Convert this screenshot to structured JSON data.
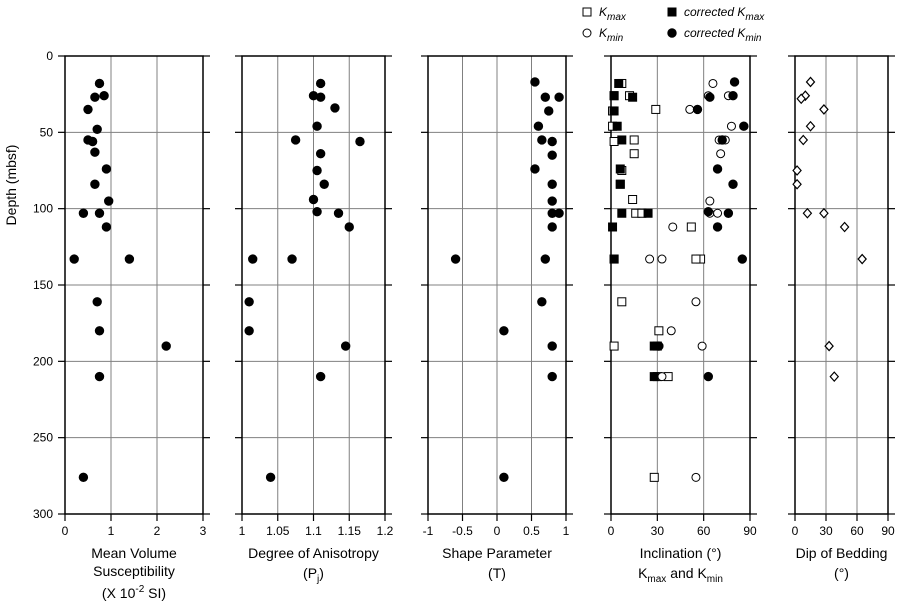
{
  "figure": {
    "depth_axis": {
      "label": "Depth (mbsf)",
      "range": [
        0,
        300
      ],
      "ticks": [
        0,
        50,
        100,
        150,
        200,
        250,
        300
      ],
      "inverted": true
    }
  },
  "legend": {
    "items": [
      {
        "marker": "open-square",
        "text": "K",
        "sub": "max"
      },
      {
        "marker": "filled-square",
        "text": "corrected K",
        "sub": "max"
      },
      {
        "marker": "open-circle",
        "text": "K",
        "sub": "min"
      },
      {
        "marker": "filled-circle",
        "text": "corrected K",
        "sub": "min"
      }
    ]
  },
  "chart_data": [
    {
      "type": "scatter",
      "xlabel_lines": [
        "Mean Volume",
        "Susceptibility",
        "(X 10",
        "-2",
        " SI)"
      ],
      "xlim": [
        0,
        3
      ],
      "xticks": [
        0,
        1,
        2,
        3
      ],
      "xtick_labels": [
        "0",
        "1",
        "2",
        "3"
      ],
      "ylim": [
        0,
        300
      ],
      "grid": true,
      "series": [
        {
          "marker": "filled-circle",
          "points": [
            [
              0.75,
              18
            ],
            [
              0.85,
              26
            ],
            [
              0.65,
              27
            ],
            [
              0.5,
              35
            ],
            [
              0.7,
              48
            ],
            [
              0.5,
              55
            ],
            [
              0.6,
              56
            ],
            [
              0.65,
              63
            ],
            [
              0.9,
              74
            ],
            [
              0.65,
              84
            ],
            [
              0.95,
              95
            ],
            [
              0.4,
              103
            ],
            [
              0.75,
              103
            ],
            [
              0.9,
              112
            ],
            [
              0.2,
              133
            ],
            [
              1.4,
              133
            ],
            [
              0.7,
              161
            ],
            [
              0.75,
              180
            ],
            [
              2.2,
              190
            ],
            [
              0.75,
              210
            ],
            [
              0.4,
              276
            ]
          ]
        }
      ]
    },
    {
      "type": "scatter",
      "xlabel_lines": [
        "Degree of Anisotropy",
        "(P",
        "j",
        ")"
      ],
      "xlim": [
        1,
        1.2
      ],
      "xticks": [
        1,
        1.05,
        1.1,
        1.15,
        1.2
      ],
      "xtick_labels": [
        "1",
        "1.05",
        "1.1",
        "1.15",
        "1.2"
      ],
      "ylim": [
        0,
        300
      ],
      "grid": true,
      "series": [
        {
          "marker": "filled-circle",
          "points": [
            [
              1.11,
              18
            ],
            [
              1.1,
              26
            ],
            [
              1.11,
              27
            ],
            [
              1.13,
              34
            ],
            [
              1.105,
              46
            ],
            [
              1.075,
              55
            ],
            [
              1.165,
              56
            ],
            [
              1.11,
              64
            ],
            [
              1.105,
              75
            ],
            [
              1.115,
              84
            ],
            [
              1.1,
              94
            ],
            [
              1.105,
              102
            ],
            [
              1.135,
              103
            ],
            [
              1.15,
              112
            ],
            [
              1.015,
              133
            ],
            [
              1.07,
              133
            ],
            [
              1.01,
              161
            ],
            [
              1.01,
              180
            ],
            [
              1.145,
              190
            ],
            [
              1.11,
              210
            ],
            [
              1.04,
              276
            ]
          ]
        }
      ]
    },
    {
      "type": "scatter",
      "xlabel_lines": [
        "Shape Parameter",
        "(T)"
      ],
      "xlim": [
        -1,
        1
      ],
      "xticks": [
        -1,
        -0.5,
        0,
        0.5,
        1
      ],
      "xtick_labels": [
        "-1",
        "-0.5",
        "0",
        "0.5",
        "1"
      ],
      "ylim": [
        0,
        300
      ],
      "grid": true,
      "series": [
        {
          "marker": "filled-circle",
          "points": [
            [
              0.55,
              17
            ],
            [
              0.7,
              27
            ],
            [
              0.9,
              27
            ],
            [
              0.75,
              36
            ],
            [
              0.6,
              46
            ],
            [
              0.65,
              55
            ],
            [
              0.8,
              56
            ],
            [
              0.55,
              74
            ],
            [
              0.8,
              65
            ],
            [
              0.8,
              84
            ],
            [
              0.8,
              95
            ],
            [
              0.8,
              103
            ],
            [
              0.9,
              103
            ],
            [
              0.8,
              112
            ],
            [
              -0.6,
              133
            ],
            [
              0.7,
              133
            ],
            [
              0.65,
              161
            ],
            [
              0.1,
              180
            ],
            [
              0.8,
              190
            ],
            [
              0.8,
              210
            ],
            [
              0.1,
              276
            ]
          ]
        }
      ]
    },
    {
      "type": "scatter",
      "xlabel_lines": [
        "Inclination (°)",
        "K",
        "max",
        " and K",
        "min"
      ],
      "xlim": [
        0,
        90
      ],
      "xticks": [
        0,
        30,
        60,
        90
      ],
      "xtick_labels": [
        "0",
        "30",
        "60",
        "90"
      ],
      "ylim": [
        0,
        300
      ],
      "grid": true,
      "series": [
        {
          "name": "K max",
          "marker": "open-square",
          "points": [
            [
              7,
              18
            ],
            [
              12,
              26
            ],
            [
              2,
              26
            ],
            [
              29,
              35
            ],
            [
              1,
              36
            ],
            [
              1,
              46
            ],
            [
              15,
              55
            ],
            [
              2,
              56
            ],
            [
              15,
              64
            ],
            [
              7,
              75
            ],
            [
              6,
              84
            ],
            [
              14,
              94
            ],
            [
              16,
              103
            ],
            [
              20,
              103
            ],
            [
              52,
              112
            ],
            [
              58,
              133
            ],
            [
              55,
              133
            ],
            [
              2,
              133
            ],
            [
              7,
              161
            ],
            [
              31,
              180
            ],
            [
              30,
              190
            ],
            [
              2,
              190
            ],
            [
              30,
              210
            ],
            [
              37,
              210
            ],
            [
              28,
              276
            ]
          ]
        },
        {
          "name": "corrected K max",
          "marker": "filled-square",
          "points": [
            [
              5,
              18
            ],
            [
              14,
              27
            ],
            [
              2,
              26
            ],
            [
              2,
              36
            ],
            [
              4,
              46
            ],
            [
              7,
              55
            ],
            [
              6,
              74
            ],
            [
              6,
              84
            ],
            [
              24,
              103
            ],
            [
              7,
              103
            ],
            [
              1,
              112
            ],
            [
              2,
              133
            ],
            [
              28,
              190
            ],
            [
              28,
              210
            ]
          ]
        },
        {
          "name": "K min",
          "marker": "open-circle",
          "points": [
            [
              66,
              18
            ],
            [
              63,
              26
            ],
            [
              76,
              26
            ],
            [
              51,
              35
            ],
            [
              78,
              46
            ],
            [
              74,
              55
            ],
            [
              70,
              55
            ],
            [
              71,
              64
            ],
            [
              64,
              95
            ],
            [
              64,
              103
            ],
            [
              69,
              103
            ],
            [
              40,
              112
            ],
            [
              25,
              133
            ],
            [
              33,
              133
            ],
            [
              55,
              161
            ],
            [
              39,
              180
            ],
            [
              59,
              190
            ],
            [
              33,
              210
            ],
            [
              55,
              276
            ]
          ]
        },
        {
          "name": "corrected K min",
          "marker": "filled-circle",
          "points": [
            [
              80,
              17
            ],
            [
              64,
              27
            ],
            [
              79,
              26
            ],
            [
              56,
              35
            ],
            [
              86,
              46
            ],
            [
              72,
              55
            ],
            [
              69,
              74
            ],
            [
              79,
              84
            ],
            [
              63,
              102
            ],
            [
              76,
              103
            ],
            [
              69,
              112
            ],
            [
              85,
              133
            ],
            [
              31,
              190
            ],
            [
              63,
              210
            ]
          ]
        }
      ]
    },
    {
      "type": "scatter",
      "xlabel_lines": [
        "Dip of Bedding",
        "(°)"
      ],
      "xlim": [
        0,
        90
      ],
      "xticks": [
        0,
        30,
        60,
        90
      ],
      "xtick_labels": [
        "0",
        "30",
        "60",
        "90"
      ],
      "ylim": [
        0,
        300
      ],
      "grid": true,
      "series": [
        {
          "marker": "open-diamond",
          "points": [
            [
              15,
              17
            ],
            [
              10,
              26
            ],
            [
              6,
              28
            ],
            [
              28,
              35
            ],
            [
              15,
              46
            ],
            [
              8,
              55
            ],
            [
              2,
              75
            ],
            [
              2,
              84
            ],
            [
              12,
              103
            ],
            [
              28,
              103
            ],
            [
              48,
              112
            ],
            [
              65,
              133
            ],
            [
              33,
              190
            ],
            [
              38,
              210
            ]
          ]
        }
      ]
    }
  ]
}
